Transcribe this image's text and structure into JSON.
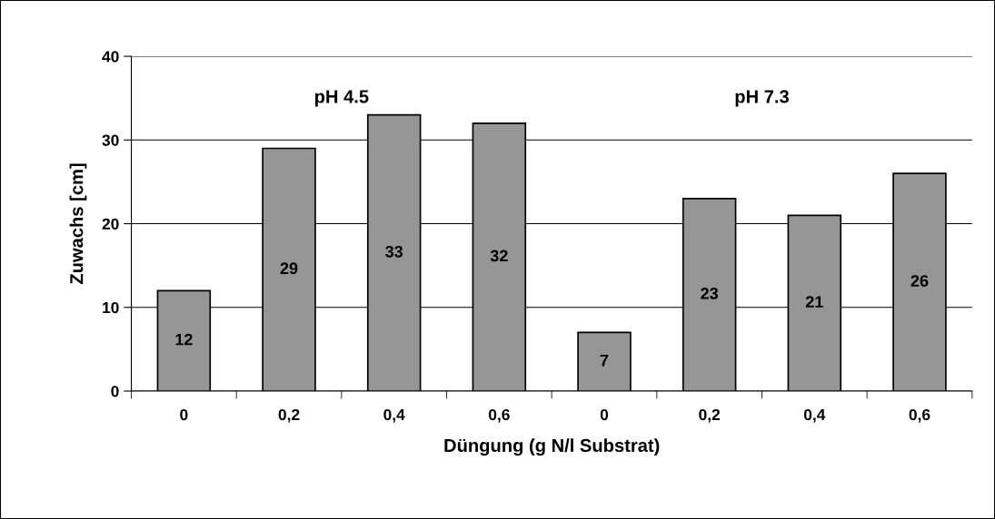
{
  "chart_data": {
    "type": "bar",
    "categories": [
      "0",
      "0,2",
      "0,4",
      "0,6",
      "0",
      "0,2",
      "0,4",
      "0,6"
    ],
    "values": [
      12,
      29,
      33,
      32,
      7,
      23,
      21,
      26
    ],
    "color": "#969696",
    "xlabel": "Düngung (g N/l Substrat)",
    "ylabel": "Zuwachs [cm]",
    "ylim": [
      0,
      40
    ],
    "yticks": [
      0,
      10,
      20,
      30,
      40
    ],
    "grid": "y",
    "data_labels": true,
    "legend": false,
    "annotations": [
      "pH 4.5",
      "pH 7.3"
    ]
  }
}
